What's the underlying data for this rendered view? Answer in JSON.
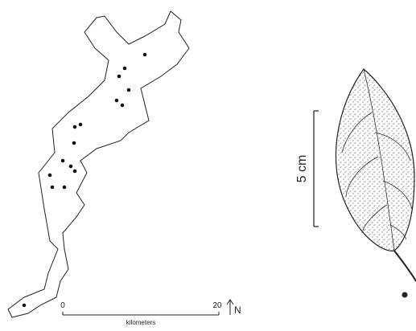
{
  "map": {
    "scale_bar": {
      "start_label": "0",
      "end_label": "20",
      "unit": "kilometers"
    },
    "north_label": "N"
  },
  "leaf": {
    "scale_label": "5 cm"
  }
}
